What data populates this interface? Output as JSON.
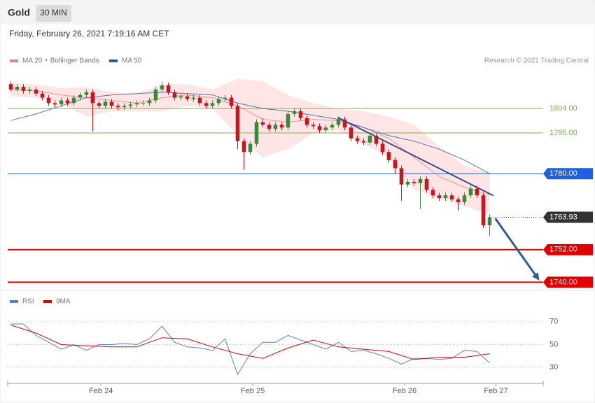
{
  "chart_data": {
    "type": "candlestick",
    "title": "Gold",
    "timeframe": "30 MIN",
    "subtitle": "Friday, February 26, 2021 7:19:16 AM CET",
    "source": "Research © 2021 Trading Central",
    "xlim": [
      -0.5,
      84.5
    ],
    "xticks": [
      {
        "value": 14.3,
        "label": "Feb 24"
      },
      {
        "value": 38.4,
        "label": "Feb 25"
      },
      {
        "value": 62.5,
        "label": "Feb 26"
      },
      {
        "value": 77,
        "label": "Feb 27"
      }
    ],
    "ylim": [
      1737,
      1819.5
    ],
    "candles": {
      "up_color": "#3a8a3a",
      "down_color": "#c8161e",
      "x": [
        0,
        1,
        2,
        3,
        4,
        5,
        6,
        7,
        8,
        9,
        10,
        11,
        12,
        13,
        14,
        15,
        16,
        17,
        18,
        19,
        20,
        21,
        22,
        23,
        24,
        25,
        26,
        27,
        28,
        29,
        30,
        31,
        32,
        33,
        34,
        35,
        36,
        37,
        38,
        39,
        40,
        41,
        42,
        43,
        44,
        45,
        46,
        47,
        48,
        49,
        50,
        51,
        52,
        53,
        54,
        55,
        56,
        57,
        58,
        59,
        60,
        61,
        62,
        63,
        64,
        65,
        66,
        67,
        68,
        69,
        70,
        71,
        72,
        73,
        74,
        75,
        76
      ],
      "open": [
        1813,
        1811,
        1812,
        1810.5,
        1811,
        1809.5,
        1808,
        1806,
        1805.5,
        1807,
        1806,
        1808,
        1809,
        1810,
        1806,
        1805,
        1806.5,
        1805,
        1804.5,
        1805,
        1805.5,
        1806,
        1806,
        1807,
        1811,
        1812.5,
        1810,
        1808,
        1808.5,
        1807.5,
        1808,
        1806,
        1805,
        1806,
        1807.5,
        1808,
        1805,
        1792,
        1788,
        1791,
        1799,
        1798,
        1796.5,
        1798,
        1797,
        1802,
        1803,
        1800.5,
        1798,
        1797.5,
        1796,
        1797,
        1798,
        1800,
        1797,
        1793,
        1792,
        1791.5,
        1794,
        1791,
        1788,
        1785,
        1782,
        1776,
        1777,
        1776.5,
        1778,
        1774,
        1772,
        1771,
        1772,
        1770.5,
        1769.5,
        1772,
        1774.5,
        1772,
        1761
      ],
      "high": [
        1814,
        1813,
        1813,
        1812,
        1812,
        1810.5,
        1809,
        1807,
        1808,
        1808,
        1809,
        1810,
        1811,
        1811,
        1807,
        1807.5,
        1807.5,
        1806,
        1806,
        1806.5,
        1807,
        1807,
        1808,
        1812,
        1814,
        1813.5,
        1811,
        1809.5,
        1809.5,
        1809,
        1809,
        1807,
        1807,
        1808.5,
        1809,
        1809,
        1806,
        1793,
        1792,
        1800,
        1800.5,
        1799,
        1799,
        1799,
        1803,
        1804,
        1804,
        1801.5,
        1799,
        1798.5,
        1798,
        1799,
        1801,
        1801,
        1798,
        1794,
        1793,
        1795,
        1795,
        1792,
        1789,
        1786,
        1783,
        1778,
        1778,
        1779,
        1779,
        1775,
        1773,
        1773,
        1773,
        1771.5,
        1773,
        1775.5,
        1775.5,
        1773,
        1765
      ],
      "low": [
        1810,
        1810,
        1809.5,
        1809.5,
        1808.5,
        1807,
        1805,
        1804.5,
        1804.5,
        1805,
        1805,
        1807,
        1808,
        1795.5,
        1804,
        1804,
        1804,
        1803.5,
        1803.5,
        1804,
        1804.5,
        1805,
        1805,
        1806,
        1810,
        1809,
        1807,
        1807,
        1806.5,
        1806.5,
        1805,
        1804,
        1804,
        1805,
        1806.5,
        1804,
        1789,
        1781.5,
        1787,
        1790,
        1797,
        1795.5,
        1795.5,
        1796,
        1796,
        1801,
        1799.5,
        1797,
        1796.5,
        1795,
        1795,
        1796,
        1797,
        1796,
        1792,
        1791,
        1790.5,
        1790.5,
        1790,
        1787,
        1784,
        1780,
        1770,
        1775,
        1775.5,
        1767,
        1773,
        1771,
        1770,
        1770,
        1769.5,
        1766.5,
        1768.5,
        1771,
        1771,
        1760,
        1757
      ],
      "close": [
        1811,
        1812,
        1810.5,
        1811,
        1809.5,
        1808,
        1806,
        1805.5,
        1807,
        1806,
        1808,
        1809,
        1810,
        1806,
        1805,
        1806.5,
        1805,
        1804.5,
        1805,
        1805.5,
        1806,
        1806,
        1807,
        1811,
        1812.5,
        1810,
        1808,
        1808.5,
        1807.5,
        1808,
        1806,
        1805,
        1806,
        1807.5,
        1808,
        1805,
        1792,
        1788,
        1791,
        1799,
        1798,
        1796.5,
        1798,
        1797,
        1802,
        1803,
        1800.5,
        1798,
        1797.5,
        1796,
        1797,
        1798,
        1800,
        1797,
        1793,
        1792,
        1791.5,
        1794,
        1791,
        1788,
        1785,
        1782,
        1776,
        1777,
        1776.5,
        1778,
        1774,
        1772,
        1771,
        1772,
        1770.5,
        1769.5,
        1772,
        1774.5,
        1772,
        1761,
        1763.93
      ]
    },
    "overlays": {
      "x": [
        0,
        4,
        8,
        12,
        16,
        20,
        24,
        28,
        32,
        36,
        40,
        44,
        48,
        52,
        56,
        60,
        64,
        68,
        72,
        76
      ],
      "series": [
        {
          "name": "MA 20 + Bollinger Bands",
          "color": "#f08080",
          "band_color": "#ffd4d4",
          "values": [
            1811,
            1810.5,
            1809,
            1808,
            1807,
            1806,
            1808,
            1809,
            1808,
            1805,
            1800,
            1799,
            1800,
            1799.5,
            1797,
            1793,
            1786,
            1779,
            1775,
            1772
          ],
          "upper": [
            1813.5,
            1813,
            1811.5,
            1812,
            1810,
            1809.5,
            1813,
            1813,
            1811,
            1815,
            1814,
            1809,
            1806,
            1804,
            1803,
            1801,
            1798,
            1790,
            1783,
            1780
          ],
          "lower": [
            1808.5,
            1808,
            1806,
            1801,
            1803,
            1803,
            1803,
            1805,
            1804,
            1794,
            1786,
            1789,
            1795,
            1796,
            1791,
            1786,
            1774,
            1771,
            1768,
            1765
          ]
        },
        {
          "name": "MA 50",
          "color": "#2b5797",
          "values": [
            1799.6,
            1802,
            1805,
            1808,
            1809,
            1809.5,
            1810,
            1809.5,
            1809,
            1806,
            1804,
            1803,
            1801.5,
            1800,
            1797,
            1794,
            1792,
            1789,
            1785,
            1780
          ]
        }
      ]
    },
    "levels": [
      {
        "value": 1804,
        "label": "1804.00",
        "color": "#7ab648",
        "boxed": false,
        "line_width": 1
      },
      {
        "value": 1795,
        "label": "1795.00",
        "color": "#7ab648",
        "boxed": false,
        "line_width": 1
      },
      {
        "value": 1780,
        "label": "1780.00",
        "color": "#1f5fe0",
        "boxed": true,
        "line_width": 1
      },
      {
        "value": 1763.93,
        "label": "1763.93",
        "color": "#333333",
        "boxed": true,
        "line_width": 0
      },
      {
        "value": 1752,
        "label": "1752.00",
        "color": "#e00000",
        "boxed": true,
        "line_width": 2
      },
      {
        "value": 1740,
        "label": "1740.00",
        "color": "#e00000",
        "boxed": true,
        "line_width": 2
      }
    ],
    "trendline": {
      "color": "#3d4a8a",
      "x": [
        51.9,
        76.6
      ],
      "y": [
        1800.7,
        1771.9
      ]
    },
    "projection": {
      "color": "#2f5a9e",
      "x": [
        76.9,
        83.9
      ],
      "y": [
        1763.5,
        1740.6
      ]
    },
    "rsi": {
      "ylim": [
        18,
        93
      ],
      "yticks": [
        30,
        50,
        70
      ],
      "series": [
        {
          "name": "RSI",
          "color": "#5b7fd6",
          "x": [
            0,
            2,
            4,
            6,
            8,
            10,
            12,
            14,
            16,
            18,
            20,
            22,
            24,
            26,
            28,
            30,
            32,
            34,
            36,
            38,
            40,
            42,
            44,
            46,
            48,
            50,
            52,
            54,
            56,
            58,
            60,
            62,
            64,
            66,
            68,
            70,
            72,
            74,
            76
          ],
          "values": [
            68,
            68,
            58,
            52,
            46,
            50,
            45,
            50,
            50,
            51,
            50,
            55,
            66,
            52,
            48,
            47,
            45,
            55,
            24,
            42,
            52,
            52,
            58,
            54,
            50,
            46,
            52,
            44,
            45,
            42,
            38,
            33,
            38,
            38,
            37,
            38,
            45,
            44,
            34
          ]
        },
        {
          "name": "9MA",
          "color": "#e00000",
          "x": [
            0,
            4,
            8,
            12,
            16,
            20,
            24,
            28,
            32,
            36,
            40,
            44,
            48,
            52,
            56,
            60,
            64,
            68,
            72,
            76
          ],
          "values": [
            67,
            60,
            50,
            49,
            48,
            48,
            56,
            55,
            48,
            42,
            38,
            47,
            54,
            48,
            46,
            44,
            37,
            39,
            39,
            42
          ]
        }
      ]
    }
  }
}
